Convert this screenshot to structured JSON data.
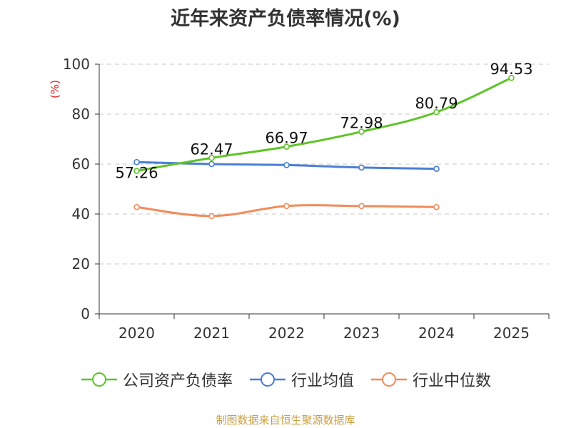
{
  "title": "近年来资产负债率情况(%)",
  "source_note": "制图数据来自恒生聚源数据库",
  "chart_data": {
    "type": "line",
    "title": "近年来资产负债率情况(%)",
    "xlabel": "",
    "ylabel": "(%)",
    "categories": [
      "2020",
      "2021",
      "2022",
      "2023",
      "2024",
      "2025"
    ],
    "ylim": [
      0,
      100
    ],
    "yticks": [
      0,
      20,
      40,
      60,
      80,
      100
    ],
    "ytick_labels": [
      "0",
      "20",
      "40",
      "60",
      "80",
      "100"
    ],
    "grid": true,
    "legend_position": "bottom",
    "series": [
      {
        "name": "公司资产负债率",
        "color": "#5fc428",
        "values": [
          57.26,
          62.47,
          66.97,
          72.98,
          80.79,
          94.53
        ],
        "labels": [
          "57.26",
          "62.47",
          "66.97",
          "72.98",
          "80.79",
          "94.53"
        ]
      },
      {
        "name": "行业均值",
        "color": "#4a7ed8",
        "values": [
          60.8,
          60.0,
          59.6,
          58.6,
          58.1,
          null
        ]
      },
      {
        "name": "行业中位数",
        "color": "#f28b5a",
        "values": [
          42.8,
          39.2,
          43.2,
          43.2,
          42.8,
          null
        ]
      }
    ]
  }
}
